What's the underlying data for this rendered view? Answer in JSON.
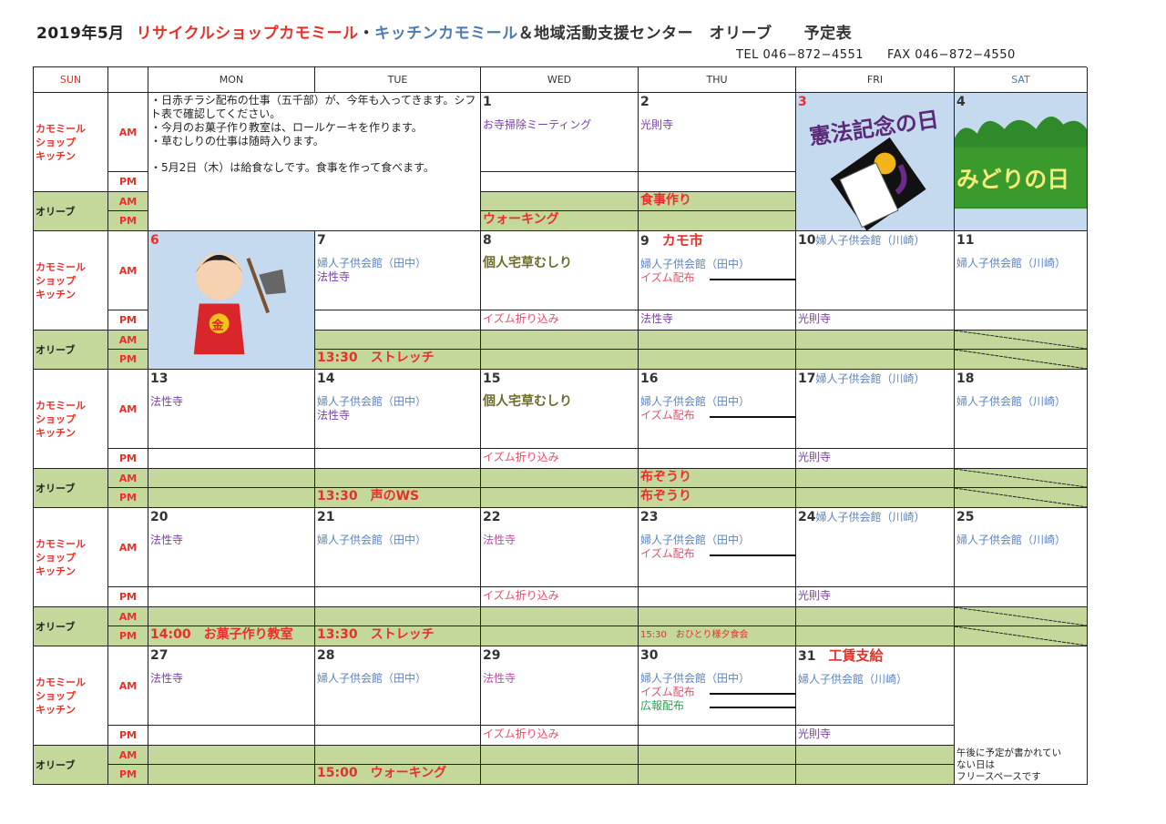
{
  "header": {
    "date": "2019年5月",
    "part1": "リサイクルショップカモミール",
    "sep": "・",
    "part2": "キッチンカモミール",
    "part3": "＆地域活動支援センター　オリーブ　　予定表",
    "tel": "TEL 046−872−4551",
    "fax": "FAX 046−872−4550"
  },
  "weekdays": [
    {
      "label": "SUN",
      "color": "#e8302a"
    },
    {
      "label": "",
      "color": "#333333"
    },
    {
      "label": "MON",
      "color": "#333333"
    },
    {
      "label": "TUE",
      "color": "#333333"
    },
    {
      "label": "WED",
      "color": "#333333"
    },
    {
      "label": "THU",
      "color": "#333333"
    },
    {
      "label": "FRI",
      "color": "#333333"
    },
    {
      "label": "SAT",
      "color": "#4d7ab3"
    }
  ],
  "labels": {
    "kamo": [
      "カモミール",
      "ショップ",
      "キッチン"
    ],
    "olive": "オリーブ",
    "am": "AM",
    "pm": "PM"
  },
  "colors": {
    "purple": "#7b3fa6",
    "blue": "#5c83bd",
    "pink": "#e8506a",
    "red": "#e8302a",
    "green": "#2aa050",
    "olive": "#6b6b2a",
    "magenta": "#c04aa8",
    "dark": "#333333",
    "green_bg": "#c4d89c",
    "image_bg": "#c5d9ef"
  },
  "weeks": [
    {
      "notes": [
        "・日赤チラシ配布の仕事（五千部）が、今年も入ってきます。シフト表で確認してください。",
        "・今月のお菓子作り教室は、ロールケーキを作ります。",
        "・草むしりの仕事は随時入ります。",
        "・5月2日（木）は給食なしです。食事を作って食べます。"
      ],
      "days": [
        null,
        null,
        {
          "num": "1",
          "am": [
            {
              "t": "お寺掃除ミーティング",
              "c": "purple"
            }
          ],
          "pm": [],
          "olive_am": [],
          "olive_pm": [
            {
              "t": "ウォーキング",
              "c": "red",
              "big": true
            }
          ]
        },
        {
          "num": "2",
          "am": [
            {
              "t": "光則寺",
              "c": "purple"
            }
          ],
          "pm": [],
          "olive_am": [
            {
              "t": "食事作り",
              "c": "red",
              "big": true
            }
          ],
          "olive_pm": []
        },
        {
          "num": "3",
          "num_color": "red",
          "image": "kenpo-kinenbi-illustration",
          "image_text": "憲法記念の日"
        },
        {
          "num": "4",
          "image": "midori-no-hi-illustration",
          "image_text": "みどりの日"
        }
      ]
    },
    {
      "days": [
        {
          "num": "6",
          "num_color": "red",
          "image": "kintaro-illustration",
          "image_text": "金"
        },
        {
          "num": "7",
          "am": [
            {
              "t": "婦人子供会館（田中）",
              "c": "blue"
            },
            {
              "t": "法性寺",
              "c": "purple"
            }
          ],
          "pm": [],
          "olive_am": [],
          "olive_pm": [
            {
              "t": "13:30　ストレッチ",
              "c": "red",
              "big": true
            }
          ]
        },
        {
          "num": "8",
          "am": [
            {
              "t": "個人宅草むしり",
              "c": "olive",
              "big": true
            }
          ],
          "pm": [
            {
              "t": "イズム折り込み",
              "c": "pink"
            }
          ],
          "olive_am": [],
          "olive_pm": []
        },
        {
          "num": "9",
          "headline": {
            "t": "カモ市",
            "c": "red",
            "big": true
          },
          "am": [
            {
              "t": "婦人子供会館（田中）",
              "c": "blue"
            },
            {
              "t": "イズム配布",
              "c": "pink",
              "arrow": true
            }
          ],
          "pm": [
            {
              "t": "法性寺",
              "c": "purple"
            }
          ],
          "olive_am": [],
          "olive_pm": []
        },
        {
          "num": "10",
          "headline": {
            "t": "婦人子供会館（川崎）",
            "c": "blue"
          },
          "am": [],
          "pm": [
            {
              "t": "光則寺",
              "c": "purple"
            }
          ],
          "olive_am": [],
          "olive_pm": []
        },
        {
          "num": "11",
          "am": [
            {
              "t": "婦人子供会館（川崎）",
              "c": "blue"
            }
          ],
          "pm": [],
          "olive_closed": true
        }
      ]
    },
    {
      "days": [
        {
          "num": "13",
          "am": [
            {
              "t": "法性寺",
              "c": "purple"
            }
          ],
          "pm": [],
          "olive_am": [],
          "olive_pm": []
        },
        {
          "num": "14",
          "am": [
            {
              "t": "婦人子供会館（田中）",
              "c": "blue"
            },
            {
              "t": "法性寺",
              "c": "purple"
            }
          ],
          "pm": [],
          "olive_am": [],
          "olive_pm": [
            {
              "t": "13:30　声のWS",
              "c": "red",
              "big": true
            }
          ]
        },
        {
          "num": "15",
          "am": [
            {
              "t": "個人宅草むしり",
              "c": "olive",
              "big": true
            }
          ],
          "pm": [
            {
              "t": "イズム折り込み",
              "c": "pink"
            }
          ],
          "olive_am": [],
          "olive_pm": []
        },
        {
          "num": "16",
          "am": [
            {
              "t": "婦人子供会館（田中）",
              "c": "blue"
            },
            {
              "t": "イズム配布",
              "c": "pink",
              "arrow": true
            }
          ],
          "pm": [],
          "olive_am": [
            {
              "t": "布ぞうり",
              "c": "red",
              "big": true
            }
          ],
          "olive_pm": [
            {
              "t": "布ぞうり",
              "c": "red",
              "big": true
            }
          ]
        },
        {
          "num": "17",
          "headline": {
            "t": "婦人子供会館（川崎）",
            "c": "blue"
          },
          "am": [],
          "pm": [
            {
              "t": "光則寺",
              "c": "purple"
            }
          ],
          "olive_am": [],
          "olive_pm": []
        },
        {
          "num": "18",
          "am": [
            {
              "t": "婦人子供会館（川崎）",
              "c": "blue"
            }
          ],
          "pm": [],
          "olive_closed": true
        }
      ]
    },
    {
      "days": [
        {
          "num": "20",
          "am": [
            {
              "t": "法性寺",
              "c": "purple"
            }
          ],
          "pm": [],
          "olive_am": [],
          "olive_pm": [
            {
              "t": "14:00　お菓子作り教室",
              "c": "red",
              "big": true
            }
          ]
        },
        {
          "num": "21",
          "am": [
            {
              "t": "婦人子供会館（田中）",
              "c": "blue"
            }
          ],
          "pm": [],
          "olive_am": [],
          "olive_pm": [
            {
              "t": "13:30　ストレッチ",
              "c": "red",
              "big": true
            }
          ]
        },
        {
          "num": "22",
          "am": [
            {
              "t": "法性寺",
              "c": "magenta"
            }
          ],
          "pm": [
            {
              "t": "イズム折り込み",
              "c": "pink"
            }
          ],
          "olive_am": [],
          "olive_pm": []
        },
        {
          "num": "23",
          "am": [
            {
              "t": "婦人子供会館（田中）",
              "c": "blue"
            },
            {
              "t": "イズム配布",
              "c": "pink",
              "arrow": true
            }
          ],
          "pm": [],
          "olive_am": [],
          "olive_pm": [
            {
              "t": "15:30　おひとり様夕食会",
              "c": "red",
              "small": true
            }
          ]
        },
        {
          "num": "24",
          "headline": {
            "t": "婦人子供会館（川崎）",
            "c": "blue"
          },
          "am": [],
          "pm": [
            {
              "t": "光則寺",
              "c": "purple"
            }
          ],
          "olive_am": [],
          "olive_pm": []
        },
        {
          "num": "25",
          "am": [
            {
              "t": "婦人子供会館（川崎）",
              "c": "blue"
            }
          ],
          "pm": [],
          "olive_closed": true
        }
      ]
    },
    {
      "days": [
        {
          "num": "27",
          "am": [
            {
              "t": "法性寺",
              "c": "purple"
            }
          ],
          "pm": [],
          "olive_am": [],
          "olive_pm": []
        },
        {
          "num": "28",
          "am": [
            {
              "t": "婦人子供会館（田中）",
              "c": "blue"
            }
          ],
          "pm": [],
          "olive_am": [],
          "olive_pm": [
            {
              "t": "15:00　ウォーキング",
              "c": "red",
              "big": true
            }
          ]
        },
        {
          "num": "29",
          "am": [
            {
              "t": "法性寺",
              "c": "magenta"
            }
          ],
          "pm": [
            {
              "t": "イズム折り込み",
              "c": "pink"
            }
          ],
          "olive_am": [],
          "olive_pm": []
        },
        {
          "num": "30",
          "am": [
            {
              "t": "婦人子供会館（田中）",
              "c": "blue"
            },
            {
              "t": "イズム配布",
              "c": "pink",
              "arrow": true
            },
            {
              "t": "広報配布",
              "c": "green",
              "arrow": true
            }
          ],
          "pm": [],
          "olive_am": [],
          "olive_pm": []
        },
        {
          "num": "31",
          "headline": {
            "t": "工賃支給",
            "c": "red",
            "big": true
          },
          "am": [
            {
              "t": "婦人子供会館（川崎）",
              "c": "blue"
            }
          ],
          "pm": [
            {
              "t": "光則寺",
              "c": "purple"
            }
          ],
          "olive_am": [],
          "olive_pm": []
        },
        {
          "merged_note": [
            "午後に予定が書かれてい",
            "ない日は",
            "フリースペースです"
          ]
        }
      ]
    }
  ]
}
